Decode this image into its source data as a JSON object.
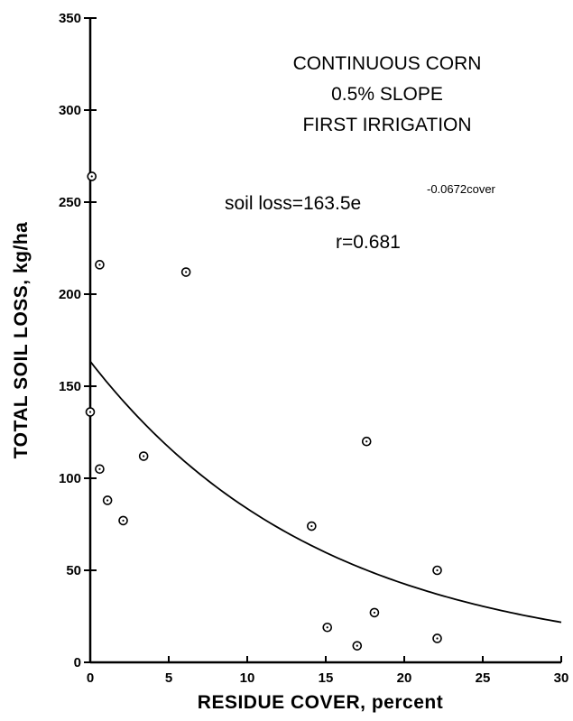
{
  "chart_data": {
    "type": "scatter",
    "xlabel": "RESIDUE COVER, percent",
    "ylabel": "TOTAL SOIL LOSS, kg/ha",
    "xlim": [
      0,
      30
    ],
    "ylim": [
      0,
      350
    ],
    "xticks": [
      0,
      5,
      10,
      15,
      20,
      25,
      30
    ],
    "yticks": [
      0,
      50,
      100,
      150,
      200,
      250,
      300,
      350
    ],
    "grid": false,
    "legend": "none",
    "annotations": {
      "title_lines": [
        "CONTINUOUS CORN",
        "0.5% SLOPE",
        "FIRST IRRIGATION"
      ],
      "equation_main": "soil loss=163.5e",
      "equation_exponent": "-0.0672cover",
      "r_value": "r=0.681"
    },
    "points": [
      {
        "x": 0.1,
        "y": 264
      },
      {
        "x": 0.6,
        "y": 216
      },
      {
        "x": 0.0,
        "y": 136
      },
      {
        "x": 0.6,
        "y": 105
      },
      {
        "x": 1.1,
        "y": 88
      },
      {
        "x": 2.1,
        "y": 77
      },
      {
        "x": 3.4,
        "y": 112
      },
      {
        "x": 6.1,
        "y": 212
      },
      {
        "x": 14.1,
        "y": 74
      },
      {
        "x": 15.1,
        "y": 19
      },
      {
        "x": 17.0,
        "y": 9
      },
      {
        "x": 17.6,
        "y": 120
      },
      {
        "x": 18.1,
        "y": 27
      },
      {
        "x": 22.1,
        "y": 50
      },
      {
        "x": 22.1,
        "y": 13
      }
    ],
    "fit_curve": {
      "a": 163.5,
      "b": -0.0672,
      "x_range": [
        0,
        30
      ]
    }
  }
}
